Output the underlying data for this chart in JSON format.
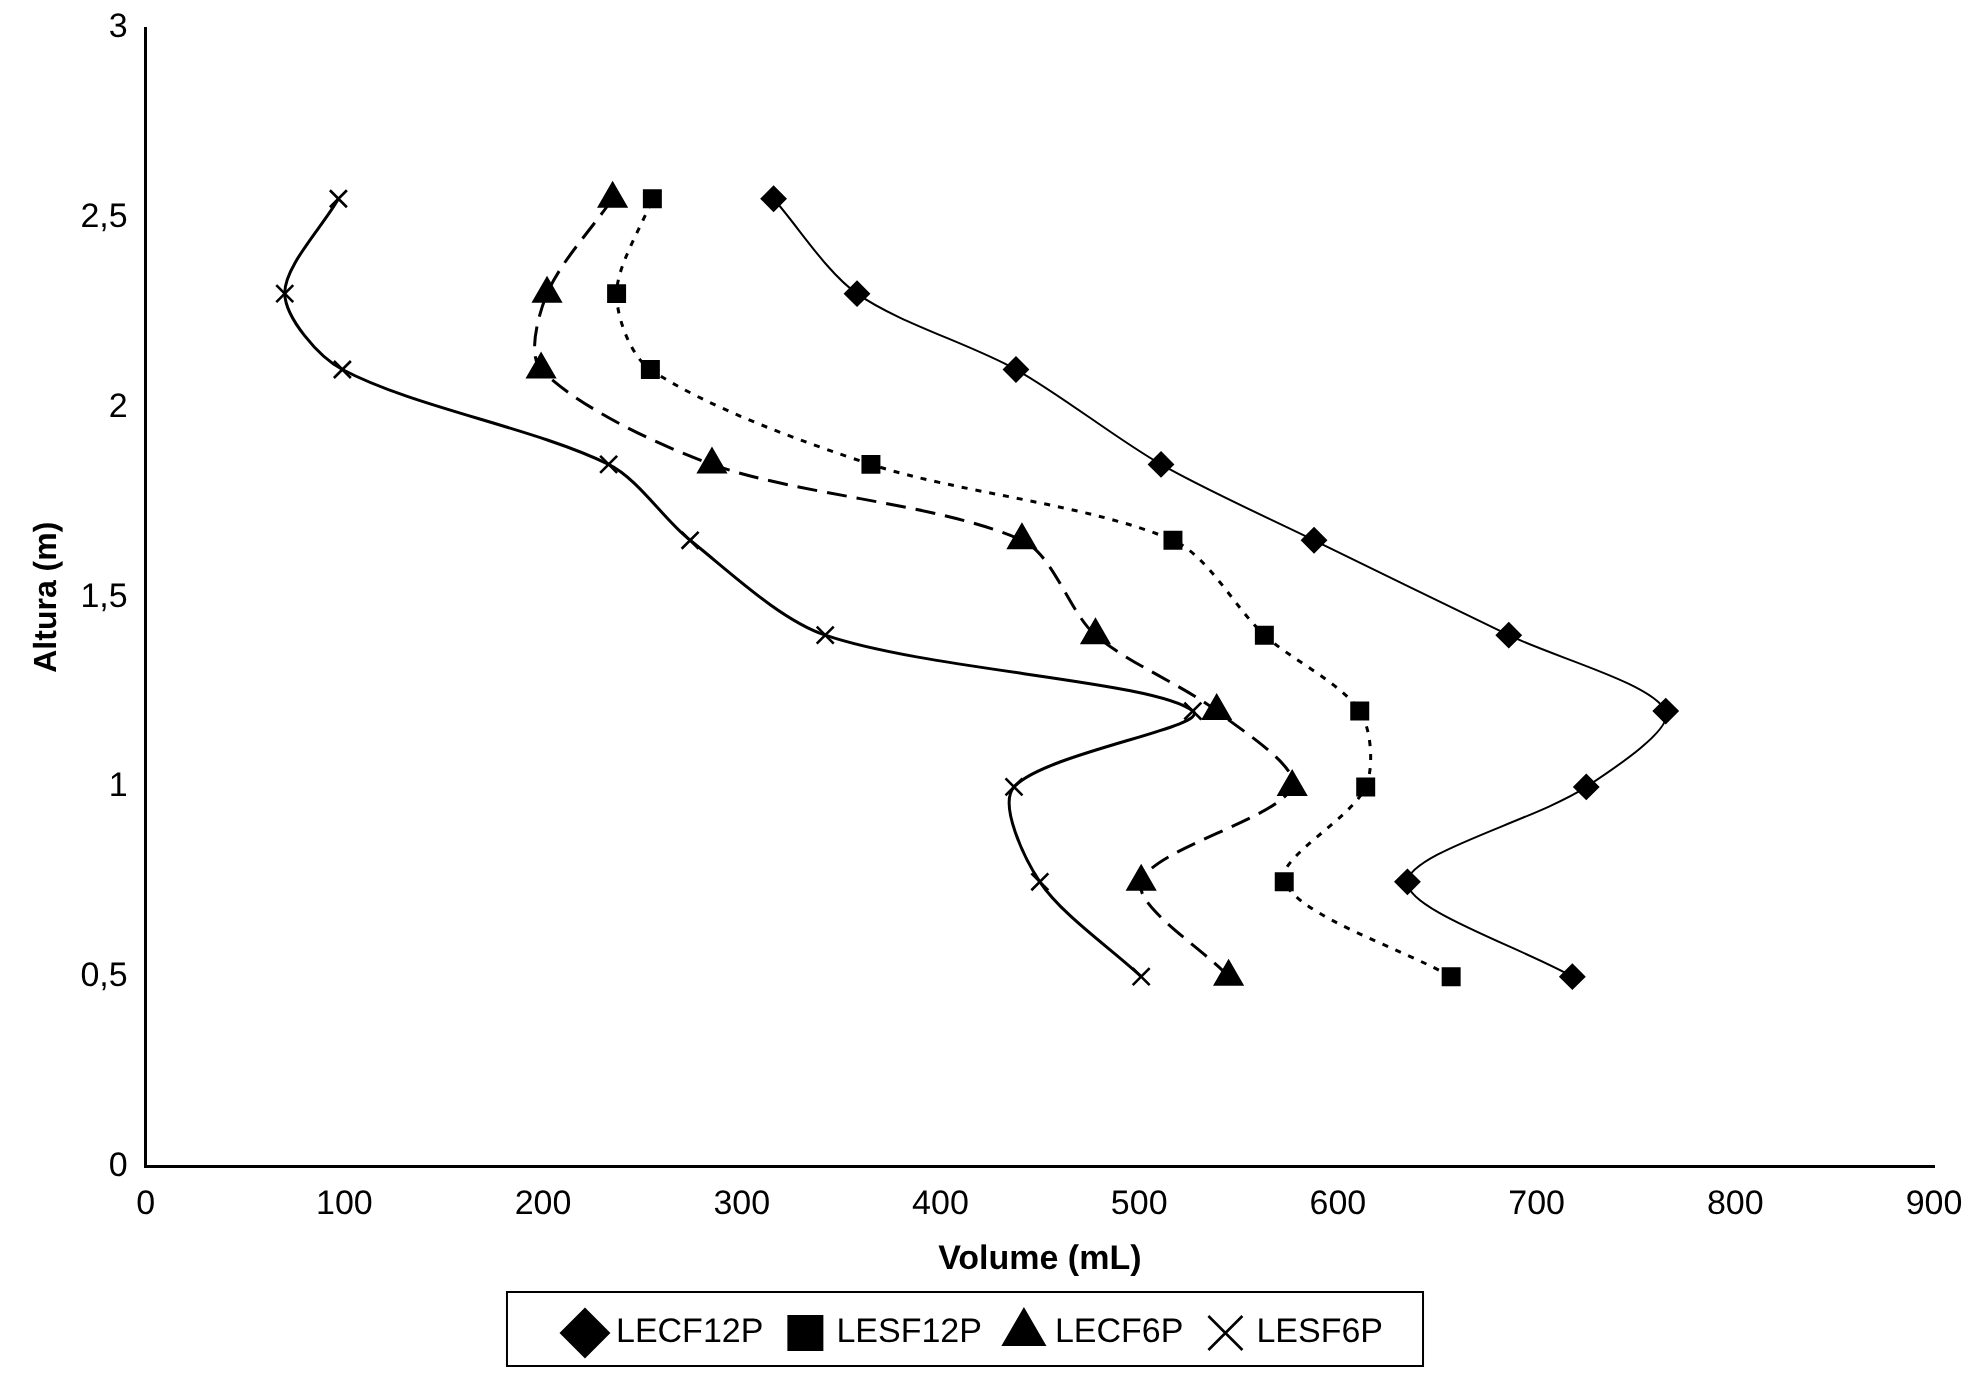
{
  "chart_data": {
    "type": "line",
    "xlabel": "Volume (mL)",
    "ylabel": "Altura (m)",
    "xlim": [
      0,
      900
    ],
    "xticks": [
      0,
      100,
      200,
      300,
      400,
      500,
      600,
      700,
      800,
      900
    ],
    "ylim": [
      0,
      3
    ],
    "yticks": [
      0,
      {
        "value": 0.5,
        "label": "0,5"
      },
      1,
      {
        "value": 1.5,
        "label": "1,5"
      },
      2,
      {
        "value": 2.5,
        "label": "2,5"
      },
      3
    ],
    "grid": false,
    "legend": "bottom",
    "series": [
      {
        "name": "LECF12P",
        "color": "#000000",
        "marker": "diamond",
        "line_style": "solid",
        "x": [
          718,
          635,
          725,
          765,
          686,
          588,
          511,
          438,
          358,
          316
        ],
        "values": [
          0.5,
          0.75,
          1,
          1.2,
          1.4,
          1.65,
          1.85,
          2.1,
          2.3,
          2.55
        ]
      },
      {
        "name": "LESF12P",
        "color": "#000000",
        "marker": "square",
        "line_style": "dotted",
        "x": [
          657,
          573,
          614,
          611,
          563,
          517,
          365,
          254,
          237,
          255
        ],
        "values": [
          0.5,
          0.75,
          1,
          1.2,
          1.4,
          1.65,
          1.85,
          2.1,
          2.3,
          2.55
        ]
      },
      {
        "name": "LECF6P",
        "color": "#000000",
        "marker": "triangle",
        "line_style": "dashed",
        "x": [
          545,
          501,
          577,
          539,
          478,
          441,
          285,
          199,
          202,
          235
        ],
        "values": [
          0.5,
          0.75,
          1,
          1.2,
          1.4,
          1.65,
          1.85,
          2.1,
          2.3,
          2.55
        ]
      },
      {
        "name": "LESF6P",
        "color": "#000000",
        "marker": "cross",
        "line_style": "solid",
        "x": [
          501,
          450,
          437,
          527,
          342,
          274,
          233,
          99,
          70,
          97
        ],
        "values": [
          0.5,
          0.75,
          1,
          1.2,
          1.4,
          1.65,
          1.85,
          2.1,
          2.3,
          2.55
        ]
      }
    ]
  }
}
